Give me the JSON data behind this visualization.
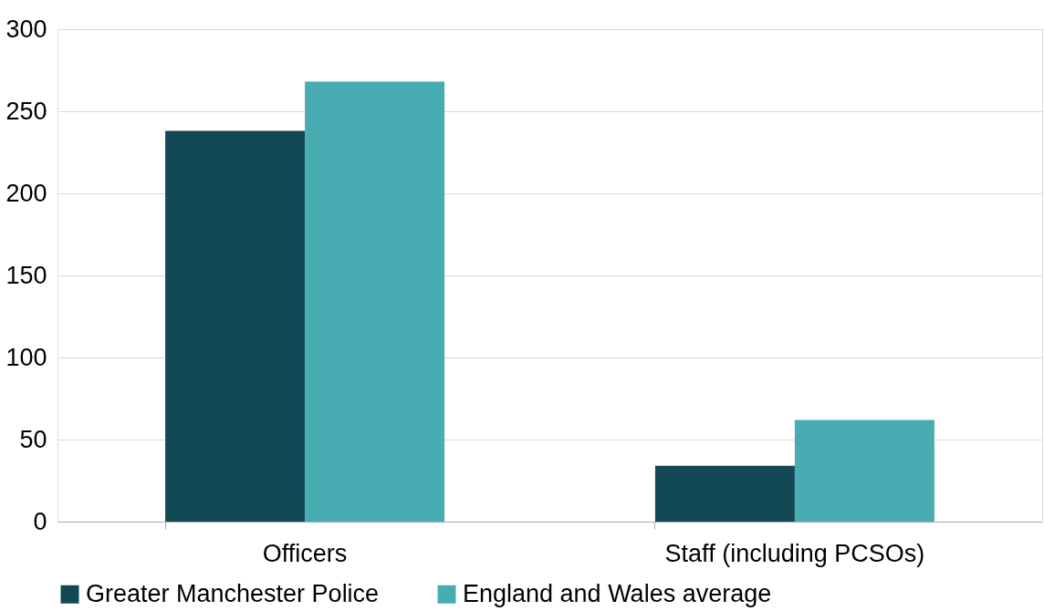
{
  "chart_data": {
    "type": "bar",
    "categories": [
      "Officers",
      "Staff (including PCSOs)"
    ],
    "series": [
      {
        "name": "Greater Manchester Police",
        "color": "#114853",
        "values": [
          238,
          34
        ]
      },
      {
        "name": "England and Wales average",
        "color": "#48adb3",
        "values": [
          268,
          62
        ]
      }
    ],
    "ylim": [
      0,
      300
    ],
    "yticks": [
      0,
      50,
      100,
      150,
      200,
      250,
      300
    ],
    "grid": "y",
    "legend": "bottom"
  }
}
